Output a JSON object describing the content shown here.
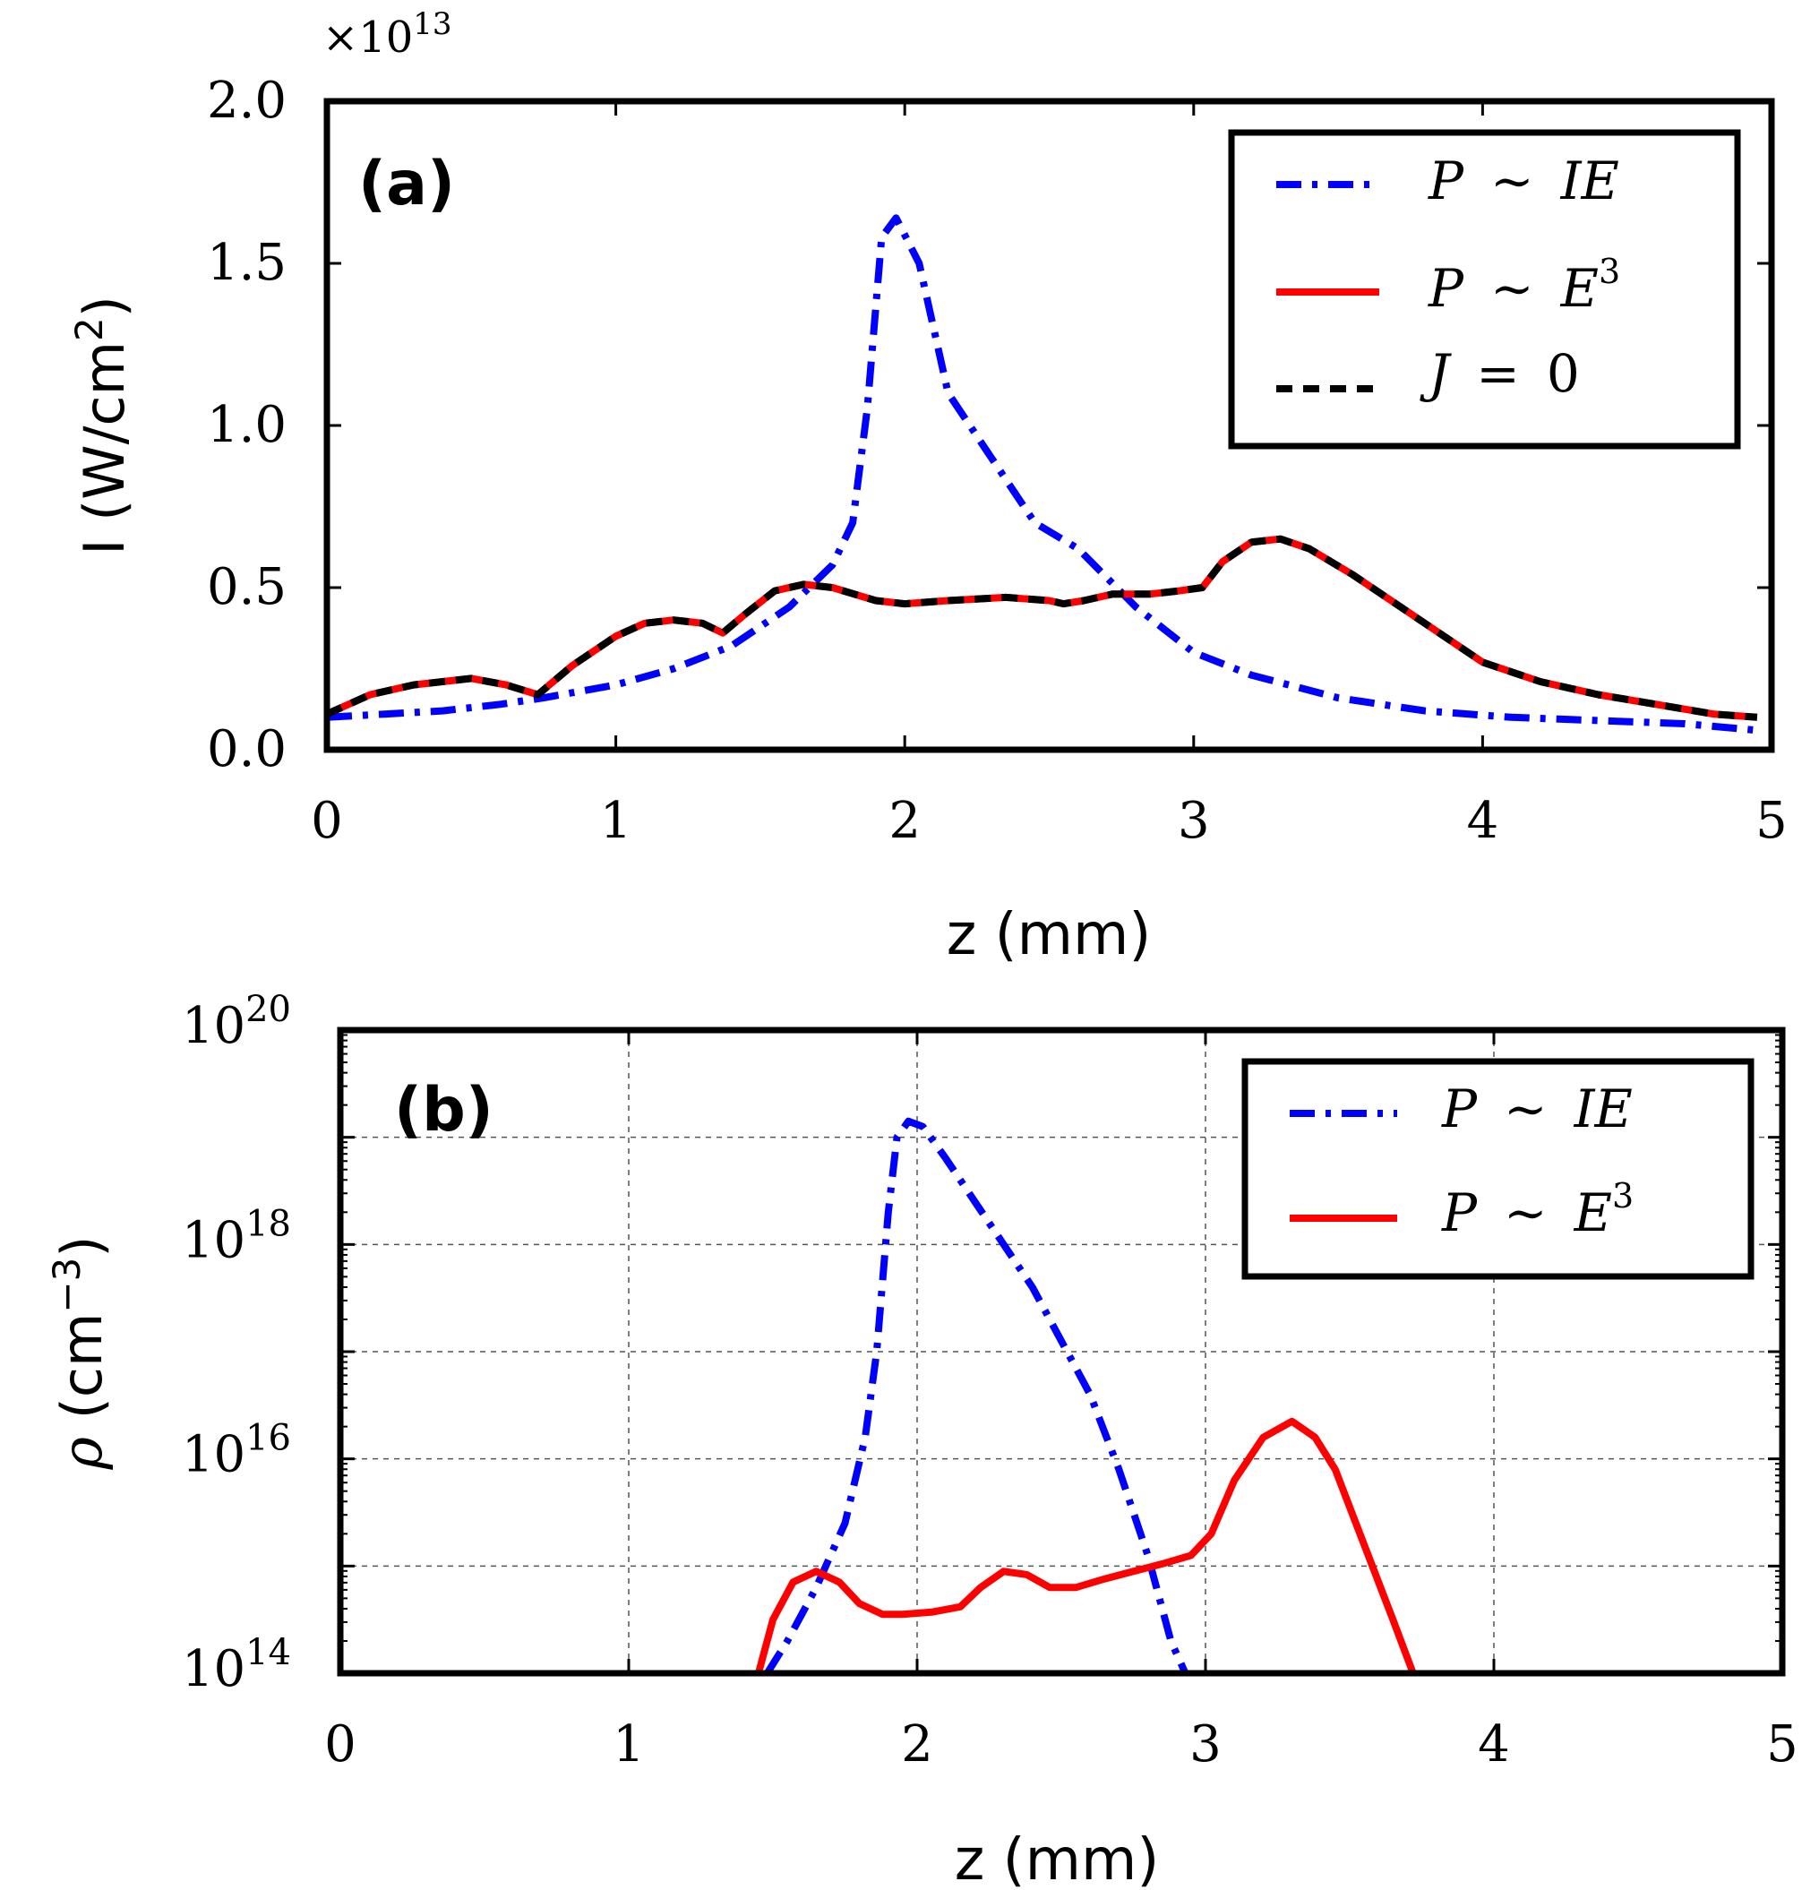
{
  "colors": {
    "ie": "#0000ff",
    "e3": "#ff0000",
    "j0": "#000000",
    "axis": "#000000",
    "grid": "#555555"
  },
  "chart_data": [
    {
      "type": "line",
      "panel": "(a)",
      "xlabel": "z (mm)",
      "ylabel": "I (W/cm",
      "ylabel_sup": "2",
      "ylabel_close": ")",
      "multiplier_prefix": "×10",
      "multiplier_exp": "13",
      "xlim": [
        0,
        5
      ],
      "ylim": [
        0,
        2.0
      ],
      "x_ticks": [
        0,
        1,
        2,
        3,
        4,
        5
      ],
      "x_tick_labels": [
        "0",
        "1",
        "2",
        "3",
        "4",
        "5"
      ],
      "y_ticks": [
        0,
        0.5,
        1.0,
        1.5,
        2.0
      ],
      "y_tick_labels": [
        "0.0",
        "0.5",
        "1.0",
        "1.5",
        "2.0"
      ],
      "grid": false,
      "legend_position": "top-right",
      "series": [
        {
          "name": "P ~ IE",
          "label_lhs": "P",
          "label_op": "∼",
          "label_rhs": "IE",
          "label_sup": "",
          "style": "dashdot",
          "color_key": "ie",
          "x": [
            0,
            0.2,
            0.4,
            0.6,
            0.75,
            1.0,
            1.2,
            1.4,
            1.6,
            1.75,
            1.82,
            1.87,
            1.92,
            1.97,
            2.05,
            2.15,
            2.3,
            2.45,
            2.6,
            2.8,
            3.0,
            3.2,
            3.5,
            3.8,
            4.1,
            4.4,
            4.7,
            4.95
          ],
          "y": [
            0.1,
            0.11,
            0.12,
            0.14,
            0.16,
            0.2,
            0.25,
            0.32,
            0.44,
            0.57,
            0.7,
            1.05,
            1.58,
            1.64,
            1.5,
            1.1,
            0.9,
            0.7,
            0.62,
            0.44,
            0.3,
            0.23,
            0.16,
            0.12,
            0.1,
            0.09,
            0.08,
            0.06
          ]
        },
        {
          "name": "P ~ E^3",
          "label_lhs": "P",
          "label_op": "∼",
          "label_rhs": "E",
          "label_sup": "3",
          "style": "solid",
          "color_key": "e3",
          "x": [
            0,
            0.15,
            0.3,
            0.5,
            0.62,
            0.73,
            0.85,
            1.0,
            1.1,
            1.2,
            1.3,
            1.37,
            1.45,
            1.55,
            1.65,
            1.75,
            1.9,
            2.0,
            2.15,
            2.35,
            2.5,
            2.55,
            2.62,
            2.72,
            2.85,
            2.95,
            3.03,
            3.1,
            3.2,
            3.3,
            3.4,
            3.55,
            3.7,
            3.85,
            4.0,
            4.2,
            4.4,
            4.6,
            4.8,
            4.95
          ],
          "y": [
            0.11,
            0.17,
            0.2,
            0.22,
            0.2,
            0.17,
            0.26,
            0.35,
            0.39,
            0.4,
            0.39,
            0.36,
            0.42,
            0.49,
            0.51,
            0.5,
            0.46,
            0.45,
            0.46,
            0.47,
            0.46,
            0.45,
            0.46,
            0.48,
            0.48,
            0.49,
            0.5,
            0.58,
            0.64,
            0.65,
            0.62,
            0.54,
            0.45,
            0.36,
            0.27,
            0.21,
            0.17,
            0.14,
            0.11,
            0.1
          ]
        },
        {
          "name": "J = 0",
          "label_lhs": "J",
          "label_op": "=",
          "label_rhs": "0",
          "label_sup": "",
          "style": "dashed",
          "color_key": "j0",
          "same_as": "P ~ E^3"
        }
      ]
    },
    {
      "type": "line",
      "panel": "(b)",
      "xlabel": "z (mm)",
      "ylabel": "ρ",
      "ylabel_unit": " (cm",
      "ylabel_sup": "−3",
      "ylabel_close": ")",
      "yscale": "log",
      "xlim": [
        0,
        5
      ],
      "ylim": [
        100000000000000.0,
        1e+20
      ],
      "x_ticks": [
        0,
        1,
        2,
        3,
        4,
        5
      ],
      "x_tick_labels": [
        "0",
        "1",
        "2",
        "3",
        "4",
        "5"
      ],
      "y_tick_exponents": [
        14,
        16,
        18,
        20
      ],
      "y_tick_base": "10",
      "y_tick_exp_labels": [
        "14",
        "16",
        "18",
        "20"
      ],
      "grid": true,
      "legend_position": "top-right",
      "series": [
        {
          "name": "P ~ IE",
          "label_lhs": "P",
          "label_op": "∼",
          "label_rhs": "IE",
          "label_sup": "",
          "style": "dashdot",
          "color_key": "ie",
          "x": [
            1.48,
            1.55,
            1.65,
            1.75,
            1.82,
            1.86,
            1.9,
            1.93,
            1.97,
            2.02,
            2.1,
            2.2,
            2.3,
            2.4,
            2.5,
            2.6,
            2.7,
            2.8,
            2.88,
            2.93
          ],
          "y_log10": [
            14.0,
            14.3,
            14.8,
            15.4,
            16.2,
            17.0,
            18.3,
            19.0,
            19.15,
            19.1,
            18.8,
            18.4,
            18.0,
            17.6,
            17.1,
            16.6,
            15.9,
            15.1,
            14.3,
            14.0
          ]
        },
        {
          "name": "P ~ E^3",
          "label_lhs": "P",
          "label_op": "∼",
          "label_rhs": "E",
          "label_sup": "3",
          "style": "solid",
          "color_key": "e3",
          "x": [
            1.45,
            1.5,
            1.57,
            1.65,
            1.73,
            1.8,
            1.88,
            1.95,
            2.05,
            2.15,
            2.22,
            2.3,
            2.38,
            2.46,
            2.55,
            2.65,
            2.75,
            2.85,
            2.95,
            3.02,
            3.1,
            3.2,
            3.3,
            3.38,
            3.45,
            3.55,
            3.65,
            3.72
          ],
          "y_log10": [
            14.0,
            14.5,
            14.85,
            14.95,
            14.85,
            14.65,
            14.55,
            14.55,
            14.57,
            14.62,
            14.8,
            14.95,
            14.92,
            14.8,
            14.8,
            14.88,
            14.95,
            15.02,
            15.1,
            15.3,
            15.8,
            16.2,
            16.35,
            16.2,
            15.9,
            15.2,
            14.5,
            14.0
          ]
        }
      ]
    }
  ]
}
